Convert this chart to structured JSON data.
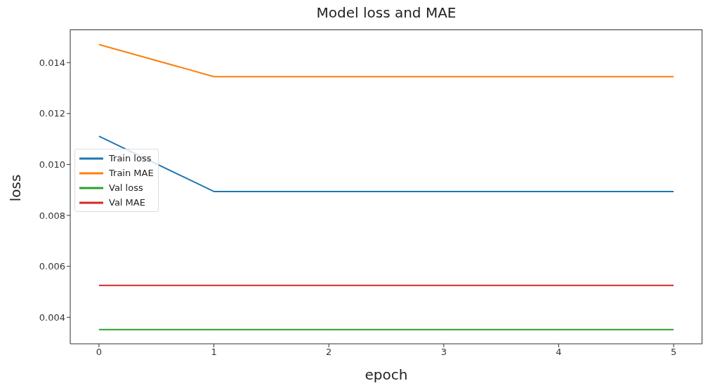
{
  "chart_data": {
    "type": "line",
    "title": "Model loss and MAE",
    "xlabel": "epoch",
    "ylabel": "loss",
    "x": [
      0,
      1,
      2,
      3,
      4,
      5
    ],
    "series": [
      {
        "name": "Train loss",
        "color": "#1f77b4",
        "values": [
          0.01111,
          0.00894,
          0.00894,
          0.00894,
          0.00894,
          0.00894
        ]
      },
      {
        "name": "Train MAE",
        "color": "#ff7f0e",
        "values": [
          0.01471,
          0.01345,
          0.01345,
          0.01345,
          0.01345,
          0.01345
        ]
      },
      {
        "name": "Val loss",
        "color": "#2ca02c",
        "values": [
          0.00352,
          0.00352,
          0.00352,
          0.00352,
          0.00352,
          0.00352
        ]
      },
      {
        "name": "Val MAE",
        "color": "#d62728",
        "values": [
          0.00525,
          0.00525,
          0.00525,
          0.00525,
          0.00525,
          0.00525
        ]
      }
    ],
    "xlim": [
      -0.25,
      5.25
    ],
    "xticks": [
      0,
      1,
      2,
      3,
      4,
      5
    ],
    "ylim": [
      0.00296,
      0.0153
    ],
    "yticks": [
      0.004,
      0.006,
      0.008,
      {
        "value": 0.01,
        "label": "0.010"
      },
      0.012,
      0.014
    ],
    "legend": "center left",
    "marker": "none",
    "line_style": "solid",
    "grid": false
  }
}
